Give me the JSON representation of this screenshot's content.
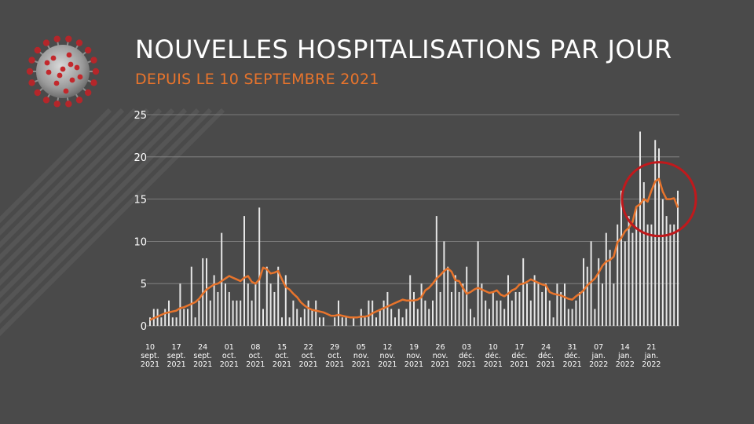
{
  "header": {
    "title": "NOUVELLES HOSPITALISATIONS PAR JOUR",
    "subtitle": "DEPUIS LE 10 SEPTEMBRE 2021"
  },
  "colors": {
    "background": "#4a4a4a",
    "bars": "#e6e6e6",
    "line": "#e8742c",
    "subtitle": "#e8742c",
    "highlight_circle": "#c0191c",
    "grid": "#8a8a8a",
    "text": "#ffffff"
  },
  "icons": {
    "logo": "coronavirus-icon"
  },
  "chart_data": {
    "type": "bar",
    "title": "NOUVELLES HOSPITALISATIONS PAR JOUR",
    "subtitle": "DEPUIS LE 10 SEPTEMBRE 2021",
    "start_date": "2021-09-10",
    "ylim": [
      0,
      25
    ],
    "yticks": [
      0,
      5,
      10,
      15,
      20,
      25
    ],
    "grid": true,
    "xtick_labels": [
      [
        "10",
        "sept.",
        "2021"
      ],
      [
        "17",
        "sept.",
        "2021"
      ],
      [
        "24",
        "sept.",
        "2021"
      ],
      [
        "01",
        "oct.",
        "2021"
      ],
      [
        "08",
        "oct.",
        "2021"
      ],
      [
        "15",
        "oct.",
        "2021"
      ],
      [
        "22",
        "oct.",
        "2021"
      ],
      [
        "29",
        "oct.",
        "2021"
      ],
      [
        "05",
        "nov.",
        "2021"
      ],
      [
        "12",
        "nov.",
        "2021"
      ],
      [
        "19",
        "nov.",
        "2021"
      ],
      [
        "26",
        "nov.",
        "2021"
      ],
      [
        "03",
        "déc.",
        "2021"
      ],
      [
        "10",
        "déc.",
        "2021"
      ],
      [
        "17",
        "déc.",
        "2021"
      ],
      [
        "24",
        "déc.",
        "2021"
      ],
      [
        "31",
        "déc.",
        "2021"
      ],
      [
        "07",
        "jan.",
        "2022"
      ],
      [
        "14",
        "jan.",
        "2022"
      ],
      [
        "21",
        "jan.",
        "2022"
      ]
    ],
    "series": [
      {
        "type": "bar",
        "values": [
          1,
          2,
          2,
          1,
          2,
          3,
          1,
          1,
          5,
          2,
          2,
          7,
          1,
          3,
          8,
          8,
          3,
          6,
          4,
          11,
          5,
          4,
          3,
          3,
          3,
          13,
          5,
          3,
          5,
          14,
          2,
          7,
          5,
          4,
          7,
          1,
          6,
          1,
          3,
          2,
          1,
          2,
          3,
          2,
          3,
          1,
          1,
          0,
          0,
          1,
          3,
          1,
          1,
          0,
          1,
          0,
          2,
          1,
          3,
          3,
          1,
          2,
          3,
          4,
          2,
          1,
          2,
          1,
          2,
          6,
          4,
          2,
          5,
          3,
          2,
          3,
          13,
          4,
          10,
          7,
          4,
          6,
          4,
          5,
          7,
          2,
          1,
          10,
          5,
          3,
          2,
          4,
          3,
          3,
          2,
          6,
          3,
          4,
          4,
          8,
          5,
          3,
          6,
          5,
          4,
          5,
          3,
          1,
          5,
          4,
          5,
          2,
          2,
          3,
          4,
          8,
          7,
          10,
          2,
          8,
          5,
          11,
          9,
          5,
          12,
          16,
          10,
          13,
          11,
          14,
          23,
          17,
          12,
          12,
          22,
          21,
          15,
          13,
          12,
          12,
          16
        ],
        "estimated": true
      },
      {
        "type": "line",
        "values": [
          0.7,
          0.9,
          1.1,
          1.3,
          1.5,
          1.6,
          1.7,
          1.8,
          2.1,
          2.2,
          2.4,
          2.6,
          2.8,
          3.2,
          3.8,
          4.3,
          4.6,
          4.9,
          5.0,
          5.3,
          5.6,
          5.9,
          5.7,
          5.5,
          5.3,
          5.7,
          5.9,
          5.2,
          5.0,
          5.5,
          6.9,
          6.7,
          6.2,
          6.3,
          6.5,
          5.5,
          4.6,
          4.3,
          3.8,
          3.4,
          2.8,
          2.4,
          2.1,
          1.9,
          1.8,
          1.7,
          1.6,
          1.4,
          1.2,
          1.2,
          1.3,
          1.2,
          1.1,
          1.0,
          1.0,
          1.0,
          1.1,
          1.1,
          1.2,
          1.5,
          1.7,
          1.9,
          2.1,
          2.3,
          2.5,
          2.7,
          2.9,
          3.1,
          3.0,
          3.0,
          3.0,
          3.1,
          3.4,
          4.2,
          4.5,
          5.0,
          5.6,
          6.0,
          6.5,
          6.8,
          6.4,
          5.4,
          5.3,
          4.5,
          3.8,
          4.0,
          4.3,
          4.5,
          4.3,
          4.1,
          3.9,
          4.0,
          4.2,
          3.7,
          3.5,
          3.8,
          4.2,
          4.4,
          4.9,
          5.0,
          5.2,
          5.5,
          5.3,
          5.1,
          4.9,
          4.8,
          4.0,
          3.8,
          3.7,
          3.6,
          3.4,
          3.2,
          3.1,
          3.5,
          3.8,
          4.2,
          4.8,
          5.2,
          5.6,
          6.3,
          7.1,
          7.6,
          7.8,
          8.2,
          9.9,
          10.4,
          11.2,
          11.6,
          12.3,
          14.1,
          14.4,
          15.0,
          14.7,
          16.0,
          17.1,
          17.4,
          15.9,
          15.0,
          15.0,
          15.1,
          14.0
        ]
      }
    ],
    "annotations": [
      {
        "type": "circle",
        "highlight": "recent peak",
        "x_index_center": 135,
        "y_center": 15
      }
    ]
  }
}
